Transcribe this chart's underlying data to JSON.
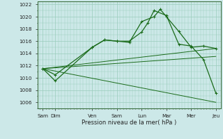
{
  "background_color": "#cce8e8",
  "grid_color": "#99ccbb",
  "line_color": "#1a6b1a",
  "xlabel": "Pression niveau de la mer( hPa )",
  "yticks": [
    1006,
    1008,
    1010,
    1012,
    1014,
    1016,
    1018,
    1020,
    1022
  ],
  "ylim": [
    1005.0,
    1022.5
  ],
  "xlim": [
    -0.2,
    7.2
  ],
  "xtick_positions": [
    0,
    0.5,
    2,
    3,
    4,
    5,
    6,
    7
  ],
  "xtick_labels": [
    "Sam",
    "Dim",
    "Ven",
    "Sam",
    "Lun",
    "Mar",
    "Mer",
    "Jeu"
  ],
  "line1_x": [
    0,
    0.5,
    2,
    2.5,
    3,
    3.5,
    4,
    4.5,
    4.75,
    5,
    5.5,
    6,
    6.5,
    7
  ],
  "line1_y": [
    1011.5,
    1010.5,
    1015.0,
    1016.2,
    1016.0,
    1015.8,
    1019.2,
    1020.0,
    1021.2,
    1020.0,
    1017.6,
    1015.0,
    1015.2,
    1014.8
  ],
  "line2_x": [
    0,
    0.5,
    2,
    2.5,
    3,
    3.5,
    4,
    4.25,
    4.5,
    5,
    5.5,
    6,
    6.5,
    7
  ],
  "line2_y": [
    1011.5,
    1009.5,
    1015.0,
    1016.2,
    1016.0,
    1016.0,
    1017.5,
    1019.0,
    1021.0,
    1020.2,
    1015.5,
    1015.2,
    1013.0,
    1007.5
  ],
  "line3_x": [
    0,
    7
  ],
  "line3_y": [
    1011.5,
    1014.8
  ],
  "line4_x": [
    0,
    7
  ],
  "line4_y": [
    1011.5,
    1013.5
  ],
  "line5_x": [
    0,
    7
  ],
  "line5_y": [
    1011.5,
    1006.0
  ]
}
